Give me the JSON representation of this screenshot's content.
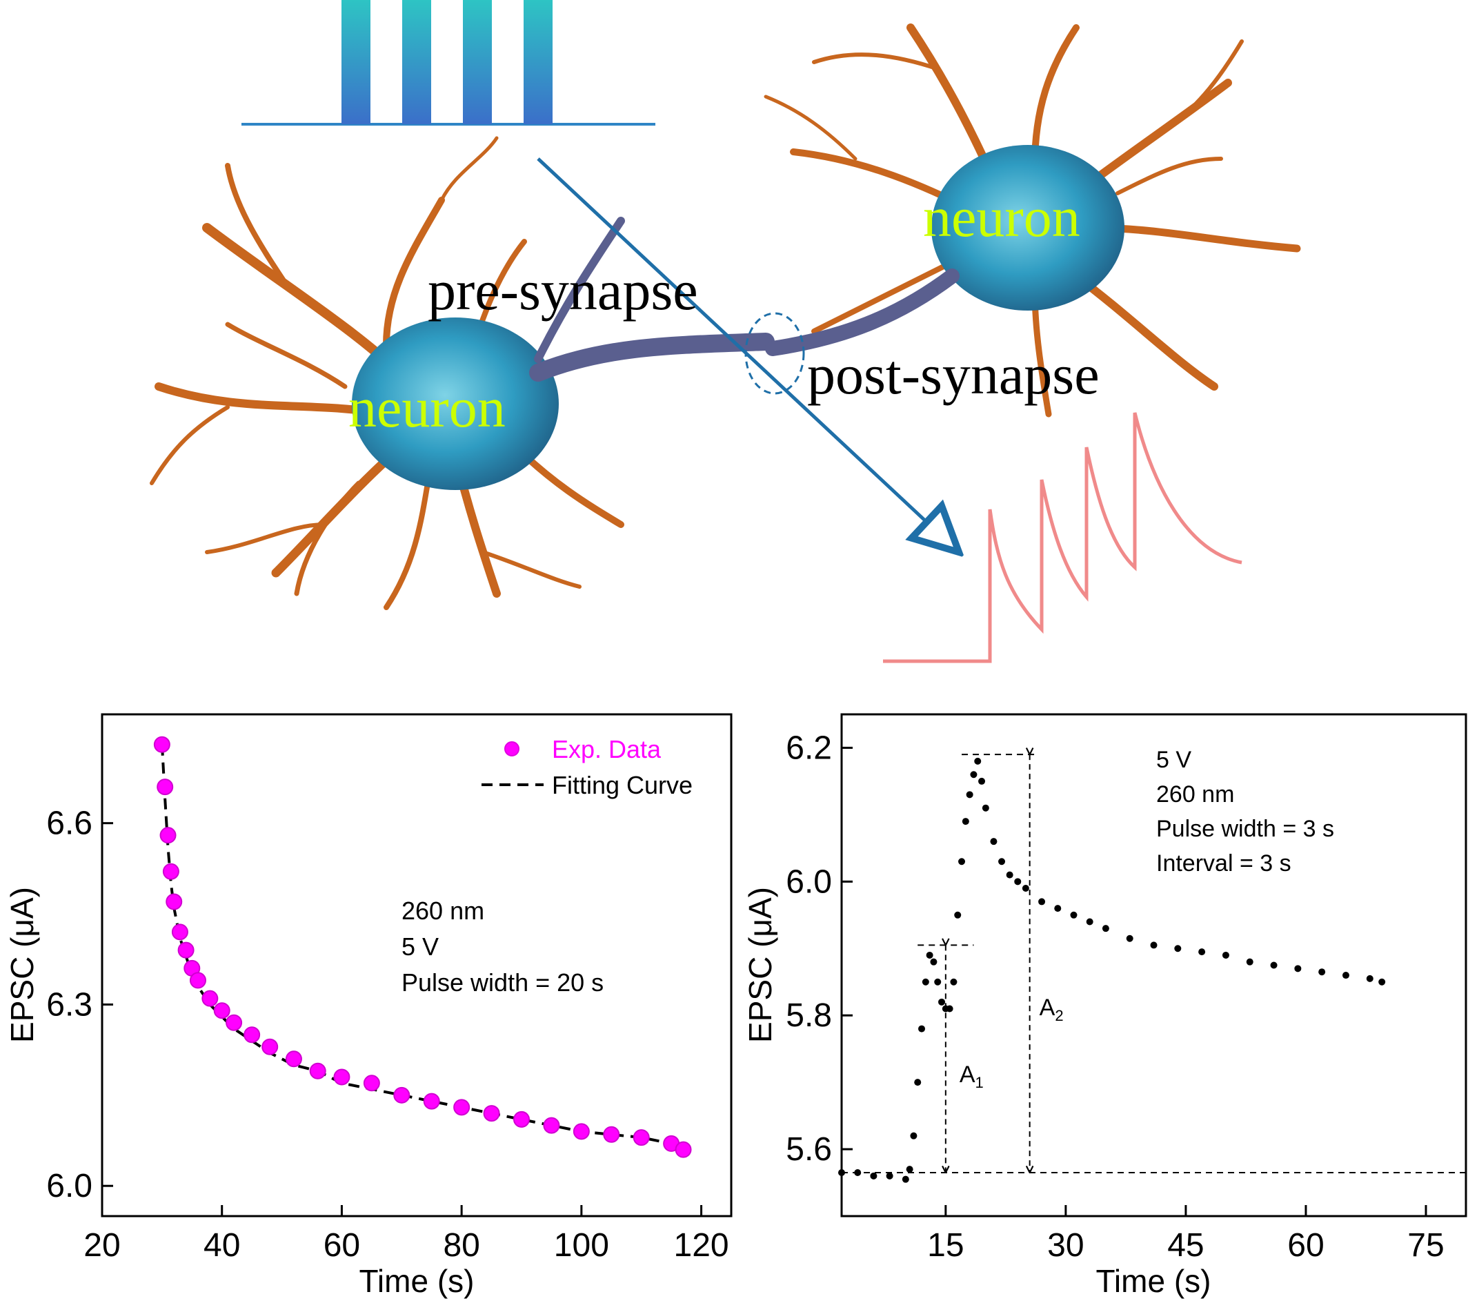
{
  "illustration": {
    "pre_label": "pre-synapse",
    "post_label": "post-synapse",
    "neuron_label_left": "neuron",
    "neuron_label_right": "neuron",
    "colors": {
      "pulse_top": "#2ec4c4",
      "pulse_bottom": "#3b6fc9",
      "arrow": "#1f6fa8",
      "epsc_trace": "#f08a8a",
      "neuron_label": "#ccff00",
      "dendrite": "#c8661e",
      "soma": "#3aa6c8"
    }
  },
  "chart_data": [
    {
      "type": "scatter",
      "xlabel": "Time (s)",
      "ylabel": "EPSC (μA)",
      "xlim": [
        20,
        125
      ],
      "ylim": [
        5.95,
        6.78
      ],
      "xticks": [
        "20",
        "40",
        "60",
        "80",
        "100",
        "120"
      ],
      "yticks": [
        "6.0",
        "6.3",
        "6.6"
      ],
      "legend": {
        "position": "top-right",
        "entries": [
          {
            "label": "Exp. Data",
            "marker": "circle",
            "color": "#ff00ff"
          },
          {
            "label": "Fitting Curve",
            "marker": "dashed-line",
            "color": "#000000"
          }
        ]
      },
      "annotation_lines": [
        "260 nm",
        "5 V",
        "Pulse width = 20 s"
      ],
      "series": [
        {
          "name": "Exp. Data",
          "color": "#ff00ff",
          "x": [
            30,
            30.5,
            31,
            31.5,
            32,
            33,
            34,
            35,
            36,
            38,
            40,
            42,
            45,
            48,
            52,
            56,
            60,
            65,
            70,
            75,
            80,
            85,
            90,
            95,
            100,
            105,
            110,
            115,
            117
          ],
          "y": [
            6.73,
            6.66,
            6.58,
            6.52,
            6.47,
            6.42,
            6.39,
            6.36,
            6.34,
            6.31,
            6.29,
            6.27,
            6.25,
            6.23,
            6.21,
            6.19,
            6.18,
            6.17,
            6.15,
            6.14,
            6.13,
            6.12,
            6.11,
            6.1,
            6.09,
            6.085,
            6.08,
            6.07,
            6.06
          ]
        },
        {
          "name": "Fitting Curve",
          "color": "#000000",
          "x": [
            30,
            30.5,
            31,
            31.5,
            32,
            33,
            34,
            35,
            36,
            38,
            40,
            42,
            45,
            48,
            52,
            56,
            60,
            65,
            70,
            75,
            80,
            85,
            90,
            95,
            100,
            105,
            110,
            115,
            117
          ],
          "y": [
            6.73,
            6.64,
            6.56,
            6.5,
            6.46,
            6.41,
            6.38,
            6.35,
            6.33,
            6.3,
            6.28,
            6.26,
            6.24,
            6.22,
            6.2,
            6.19,
            6.17,
            6.16,
            6.15,
            6.14,
            6.13,
            6.12,
            6.11,
            6.1,
            6.09,
            6.085,
            6.08,
            6.07,
            6.065
          ]
        }
      ]
    },
    {
      "type": "scatter",
      "xlabel": "Time (s)",
      "ylabel": "EPSC (μA)",
      "xlim": [
        2,
        80
      ],
      "ylim": [
        5.5,
        6.25
      ],
      "xticks": [
        "15",
        "30",
        "45",
        "60",
        "75"
      ],
      "yticks": [
        "5.6",
        "5.8",
        "6.0",
        "6.2"
      ],
      "annotation_lines": [
        "5 V",
        "260 nm",
        "Pulse width = 3 s",
        "Interval = 3 s"
      ],
      "amplitude_labels": {
        "A1": {
          "x": 15,
          "from": 5.565,
          "to": 5.905
        },
        "A2": {
          "x": 25.5,
          "from": 5.565,
          "to": 6.19
        }
      },
      "reference_levels": [
        5.565,
        5.905,
        6.19
      ],
      "series": [
        {
          "name": "",
          "color": "#000000",
          "x": [
            2,
            4,
            6,
            8,
            10,
            10.5,
            11,
            11.5,
            12,
            12.5,
            13,
            13.5,
            14,
            14.5,
            15,
            15.5,
            16,
            16.5,
            17,
            17.5,
            18,
            18.5,
            19,
            19.5,
            20,
            21,
            22,
            23,
            24,
            25,
            27,
            29,
            31,
            33,
            35,
            38,
            41,
            44,
            47,
            50,
            53,
            56,
            59,
            62,
            65,
            68,
            69.5
          ],
          "y": [
            5.565,
            5.565,
            5.56,
            5.56,
            5.555,
            5.57,
            5.62,
            5.7,
            5.78,
            5.85,
            5.89,
            5.88,
            5.85,
            5.82,
            5.81,
            5.81,
            5.85,
            5.95,
            6.03,
            6.09,
            6.13,
            6.16,
            6.18,
            6.15,
            6.11,
            6.06,
            6.03,
            6.01,
            6.0,
            5.99,
            5.97,
            5.96,
            5.95,
            5.94,
            5.93,
            5.915,
            5.905,
            5.9,
            5.895,
            5.89,
            5.88,
            5.875,
            5.87,
            5.865,
            5.86,
            5.855,
            5.85
          ]
        }
      ]
    }
  ]
}
